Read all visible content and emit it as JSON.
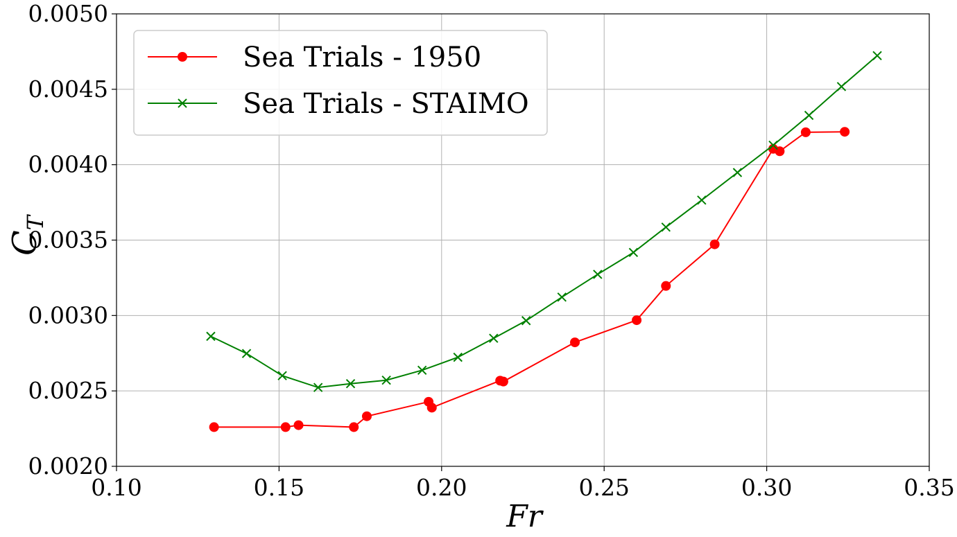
{
  "chart_data": {
    "type": "line",
    "xlabel": "Fr",
    "ylabel_main": "C",
    "ylabel_sub": "T",
    "xlim": [
      0.1,
      0.35
    ],
    "ylim": [
      0.002,
      0.005
    ],
    "grid": true,
    "legend_position": "top-left",
    "x_ticks": [
      0.1,
      0.15,
      0.2,
      0.25,
      0.3,
      0.35
    ],
    "x_tick_labels": [
      "0.10",
      "0.15",
      "0.20",
      "0.25",
      "0.30",
      "0.35"
    ],
    "y_ticks": [
      0.002,
      0.0025,
      0.003,
      0.0035,
      0.004,
      0.0045,
      0.005
    ],
    "y_tick_labels": [
      "0.0020",
      "0.0025",
      "0.0030",
      "0.0035",
      "0.0040",
      "0.0045",
      "0.0050"
    ],
    "series": [
      {
        "name": "Sea Trials - 1950",
        "color": "#ff0000",
        "marker": "circle",
        "x": [
          0.13,
          0.152,
          0.156,
          0.173,
          0.177,
          0.196,
          0.197,
          0.218,
          0.219,
          0.241,
          0.26,
          0.269,
          0.284,
          0.302,
          0.304,
          0.312,
          0.324
        ],
        "y": [
          0.00226,
          0.00226,
          0.002273,
          0.00226,
          0.002332,
          0.002428,
          0.002389,
          0.002568,
          0.002562,
          0.002822,
          0.002969,
          0.003196,
          0.003472,
          0.004105,
          0.004089,
          0.004215,
          0.004218
        ]
      },
      {
        "name": "Sea Trials - STAIMO",
        "color": "#008000",
        "marker": "x",
        "x": [
          0.129,
          0.14,
          0.151,
          0.162,
          0.172,
          0.183,
          0.194,
          0.205,
          0.216,
          0.226,
          0.237,
          0.248,
          0.259,
          0.269,
          0.28,
          0.291,
          0.302,
          0.313,
          0.323,
          0.334
        ],
        "y": [
          0.002862,
          0.002748,
          0.002601,
          0.002523,
          0.002548,
          0.002571,
          0.002637,
          0.002723,
          0.002849,
          0.002966,
          0.003122,
          0.003273,
          0.003418,
          0.003586,
          0.003765,
          0.003948,
          0.004129,
          0.004327,
          0.004518,
          0.004723
        ]
      }
    ]
  }
}
